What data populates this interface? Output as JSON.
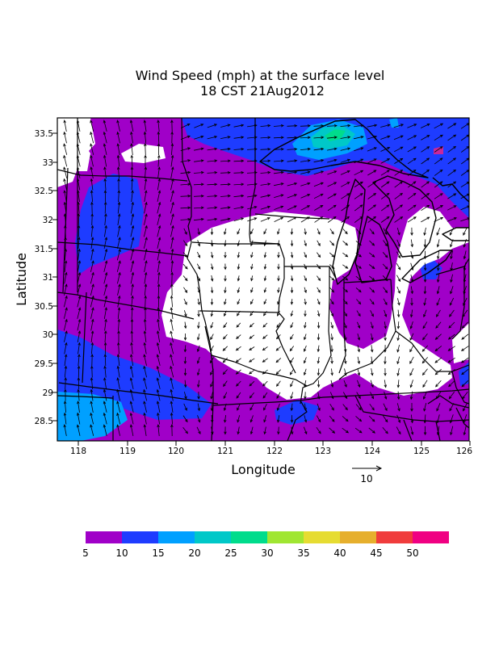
{
  "title": {
    "line1": "Wind Speed (mph) at the surface level",
    "line2": "18 CST 21Aug2012"
  },
  "axes": {
    "xlabel": "Longitude",
    "ylabel": "Latitude",
    "x_ticks": [
      "118",
      "119",
      "120",
      "121",
      "122",
      "123",
      "124",
      "125",
      "126"
    ],
    "y_ticks": [
      "33.5",
      "33",
      "32.5",
      "32",
      "31.5",
      "31",
      "30.5",
      "30",
      "29.5",
      "29",
      "28.5"
    ]
  },
  "reference_vector": {
    "label": "10"
  },
  "colorbar": {
    "colors": [
      "#a000c8",
      "#1e3cff",
      "#00a0ff",
      "#00c8c8",
      "#00dc8c",
      "#a0e632",
      "#e6dc32",
      "#e6af2d",
      "#f03c3c",
      "#f00082"
    ],
    "labels": [
      "5",
      "10",
      "15",
      "20",
      "25",
      "30",
      "35",
      "40",
      "45",
      "50"
    ]
  },
  "palette": {
    "calm": "#ffffff",
    "purple": "#a000c8",
    "blue": "#1e3cff",
    "cyan": "#00a0ff",
    "teal": "#00c8c8",
    "green": "#00dc8c",
    "magenta": "#c8289b"
  }
}
